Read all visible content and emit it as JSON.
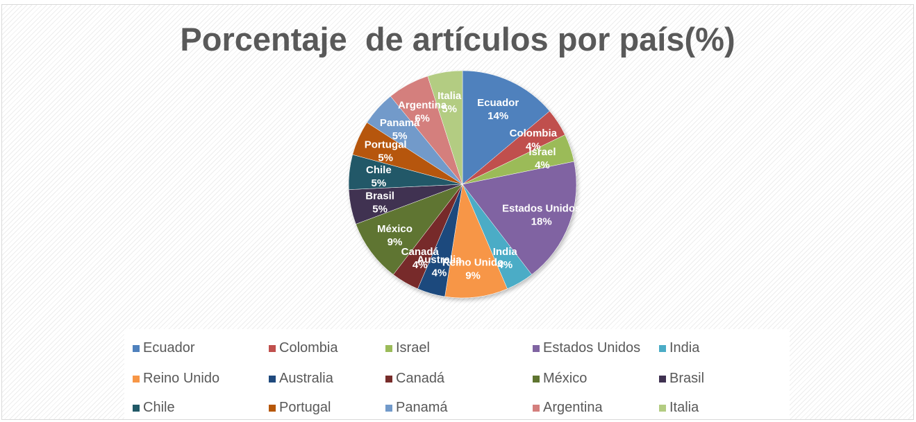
{
  "chart_data": {
    "type": "pie",
    "title": "Porcentaje  de artículos por país(%)",
    "categories": [
      "Ecuador",
      "Colombia",
      "Israel",
      "Estados Unidos",
      "India",
      "Reino Unido",
      "Australia",
      "Canadá",
      "México",
      "Brasil",
      "Chile",
      "Portugal",
      "Panamá",
      "Argentina",
      "Italia"
    ],
    "values": [
      14,
      4,
      4,
      18,
      4,
      9,
      4,
      4,
      9,
      5,
      5,
      5,
      5,
      6,
      5
    ],
    "data_labels": [
      "14%",
      "4%",
      "4%",
      "18%",
      "4%",
      "9%",
      "4%",
      "4%",
      "9%",
      "5%",
      "5%",
      "5%",
      "5%",
      "6%",
      "5%"
    ],
    "colors": [
      "#4f81bd",
      "#c0504d",
      "#9bbb59",
      "#8064a2",
      "#4bacc6",
      "#f79646",
      "#1f497d",
      "#772c2a",
      "#5f7530",
      "#3f3151",
      "#215967",
      "#b65708",
      "#729aca",
      "#d47f7d",
      "#b3cc82"
    ],
    "legend_position": "bottom",
    "start_angle_deg": 0,
    "direction": "clockwise"
  }
}
